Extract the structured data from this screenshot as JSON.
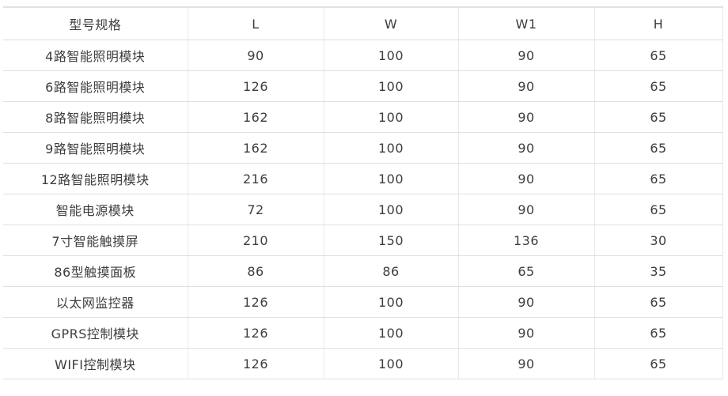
{
  "table": {
    "columns": [
      "型号规格",
      "L",
      "W",
      "W1",
      "H"
    ],
    "rows": [
      [
        "4路智能照明模块",
        "90",
        "100",
        "90",
        "65"
      ],
      [
        "6路智能照明模块",
        "126",
        "100",
        "90",
        "65"
      ],
      [
        "8路智能照明模块",
        "162",
        "100",
        "90",
        "65"
      ],
      [
        "9路智能照明模块",
        "162",
        "100",
        "90",
        "65"
      ],
      [
        "12路智能照明模块",
        "216",
        "100",
        "90",
        "65"
      ],
      [
        "智能电源模块",
        "72",
        "100",
        "90",
        "65"
      ],
      [
        "7寸智能触摸屏",
        "210",
        "150",
        "136",
        "30"
      ],
      [
        "86型触摸面板",
        "86",
        "86",
        "65",
        "35"
      ],
      [
        "以太网监控器",
        "126",
        "100",
        "90",
        "65"
      ],
      [
        "GPRS控制模块",
        "126",
        "100",
        "90",
        "65"
      ],
      [
        "WIFI控制模块",
        "126",
        "100",
        "90",
        "65"
      ]
    ]
  },
  "colors": {
    "text": "#3d3d3d",
    "border_horizontal": "#e2dfdf",
    "border_vertical": "#eae8e8",
    "background": "#ffffff"
  }
}
